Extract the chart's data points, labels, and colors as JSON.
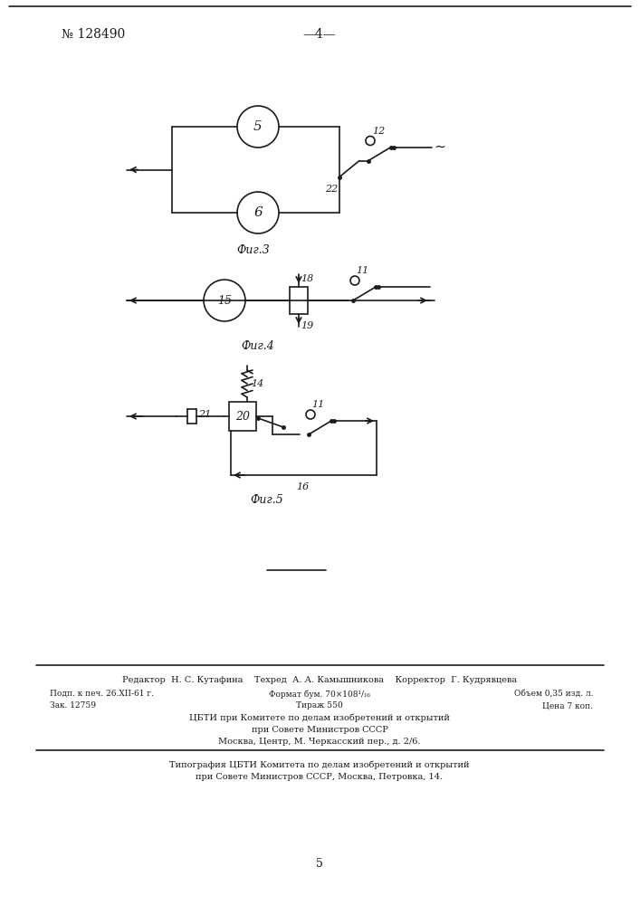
{
  "page_number": "№ 128490",
  "page_num_center": "—4—",
  "fig3_label": "Фиг.3",
  "fig4_label": "Фиг.4",
  "fig5_label": "Фиг.5",
  "footer_line1": "Редактор  Н. С. Кутафина    Техред  А. А. Камышникова    Корректор  Г. Кудрявцева",
  "footer_col1a": "Подп. к печ. 26.XII-61 г.",
  "footer_col2a": "Формат бум. 70×108¹/₁₆",
  "footer_col3a": "Объем 0,35 изд. л.",
  "footer_col1b": "Зак. 12759",
  "footer_col2b": "Тираж 550",
  "footer_col3b": "Цена 7 коп.",
  "footer_line4": "ЦБТИ при Комитете по делам изобретений и открытий",
  "footer_line5": "при Совете Министров СССР",
  "footer_line6": "Москва, Центр, М. Черкасский пер., д. 2/6.",
  "footer_line7": "Типография ЦБТИ Комитета по делам изобретений и открытий",
  "footer_line8": "при Совете Министров СССР, Москва, Петровка, 14.",
  "page_bottom": "5",
  "bg_color": "#ffffff",
  "line_color": "#1a1a1a"
}
